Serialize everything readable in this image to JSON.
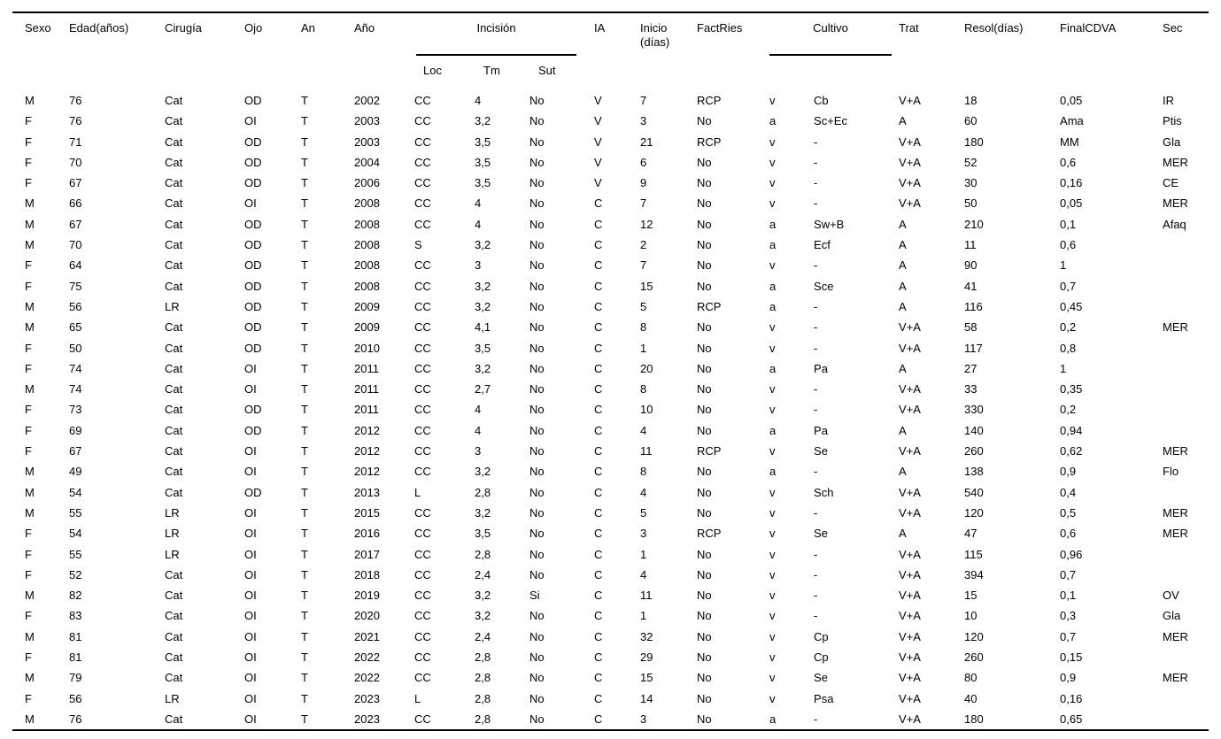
{
  "colors": {
    "background": "#ffffff",
    "text": "#000000",
    "rule": "#000000"
  },
  "table": {
    "header": {
      "sexo": "Sexo",
      "edad": "Edad(años)",
      "cirugia": "Cirugía",
      "ojo": "Ojo",
      "an": "An",
      "ano": "Año",
      "incision": "Incisión",
      "loc": "Loc",
      "tm": "Tm",
      "sut": "Sut",
      "ia": "IA",
      "inicio_line1": "Inicio",
      "inicio_line2": "(días)",
      "factries": "FactRies",
      "cultivo": "Cultivo",
      "trat": "Trat",
      "resol": "Resol(días)",
      "finalcdva": "FinalCDVA",
      "sec": "Sec"
    },
    "rows": [
      [
        "M",
        "76",
        "Cat",
        "OD",
        "T",
        "2002",
        "CC",
        "4",
        "No",
        "V",
        "7",
        "RCP",
        "v",
        "Cb",
        "V+A",
        "18",
        "0,05",
        "IR"
      ],
      [
        "F",
        "76",
        "Cat",
        "OI",
        "T",
        "2003",
        "CC",
        "3,2",
        "No",
        "V",
        "3",
        "No",
        "a",
        "Sc+Ec",
        "A",
        "60",
        "Ama",
        "Ptis"
      ],
      [
        "F",
        "71",
        "Cat",
        "OD",
        "T",
        "2003",
        "CC",
        "3,5",
        "No",
        "V",
        "21",
        "RCP",
        "v",
        "-",
        "V+A",
        "180",
        "MM",
        "Gla"
      ],
      [
        "F",
        "70",
        "Cat",
        "OD",
        "T",
        "2004",
        "CC",
        "3,5",
        "No",
        "V",
        "6",
        "No",
        "v",
        "-",
        "V+A",
        "52",
        "0,6",
        "MER"
      ],
      [
        "F",
        "67",
        "Cat",
        "OD",
        "T",
        "2006",
        "CC",
        "3,5",
        "No",
        "V",
        "9",
        "No",
        "v",
        "-",
        "V+A",
        "30",
        "0,16",
        "CE"
      ],
      [
        "M",
        "66",
        "Cat",
        "OI",
        "T",
        "2008",
        "CC",
        "4",
        "No",
        "C",
        "7",
        "No",
        "v",
        "-",
        "V+A",
        "50",
        "0,05",
        "MER"
      ],
      [
        "M",
        "67",
        "Cat",
        "OD",
        "T",
        "2008",
        "CC",
        "4",
        "No",
        "C",
        "12",
        "No",
        "a",
        "Sw+B",
        "A",
        "210",
        "0,1",
        "Afaq"
      ],
      [
        "M",
        "70",
        "Cat",
        "OD",
        "T",
        "2008",
        "S",
        "3,2",
        "No",
        "C",
        "2",
        "No",
        "a",
        "Ecf",
        "A",
        "11",
        "0,6",
        ""
      ],
      [
        "F",
        "64",
        "Cat",
        "OD",
        "T",
        "2008",
        "CC",
        "3",
        "No",
        "C",
        "7",
        "No",
        "v",
        "-",
        "A",
        "90",
        "1",
        ""
      ],
      [
        "F",
        "75",
        "Cat",
        "OD",
        "T",
        "2008",
        "CC",
        "3,2",
        "No",
        "C",
        "15",
        "No",
        "a",
        "Sce",
        "A",
        "41",
        "0,7",
        ""
      ],
      [
        "M",
        "56",
        "LR",
        "OD",
        "T",
        "2009",
        "CC",
        "3,2",
        "No",
        "C",
        "5",
        "RCP",
        "a",
        "-",
        "A",
        "116",
        "0,45",
        ""
      ],
      [
        "M",
        "65",
        "Cat",
        "OD",
        "T",
        "2009",
        "CC",
        "4,1",
        "No",
        "C",
        "8",
        "No",
        "v",
        "-",
        "V+A",
        "58",
        "0,2",
        "MER"
      ],
      [
        "F",
        "50",
        "Cat",
        "OD",
        "T",
        "2010",
        "CC",
        "3,5",
        "No",
        "C",
        "1",
        "No",
        "v",
        "-",
        "V+A",
        "117",
        "0,8",
        ""
      ],
      [
        "F",
        "74",
        "Cat",
        "OI",
        "T",
        "2011",
        "CC",
        "3,2",
        "No",
        "C",
        "20",
        "No",
        "a",
        "Pa",
        "A",
        "27",
        "1",
        ""
      ],
      [
        "M",
        "74",
        "Cat",
        "OI",
        "T",
        "2011",
        "CC",
        "2,7",
        "No",
        "C",
        "8",
        "No",
        "v",
        "-",
        "V+A",
        "33",
        "0,35",
        ""
      ],
      [
        "F",
        "73",
        "Cat",
        "OD",
        "T",
        "2011",
        "CC",
        "4",
        "No",
        "C",
        "10",
        "No",
        "v",
        "-",
        "V+A",
        "330",
        "0,2",
        ""
      ],
      [
        "F",
        "69",
        "Cat",
        "OD",
        "T",
        "2012",
        "CC",
        "4",
        "No",
        "C",
        "4",
        "No",
        "a",
        "Pa",
        "A",
        "140",
        "0,94",
        ""
      ],
      [
        "F",
        "67",
        "Cat",
        "OI",
        "T",
        "2012",
        "CC",
        "3",
        "No",
        "C",
        "11",
        "RCP",
        "v",
        "Se",
        "V+A",
        "260",
        "0,62",
        "MER"
      ],
      [
        "M",
        "49",
        "Cat",
        "OI",
        "T",
        "2012",
        "CC",
        "3,2",
        "No",
        "C",
        "8",
        "No",
        "a",
        "-",
        "A",
        "138",
        "0,9",
        "Flo"
      ],
      [
        "M",
        "54",
        "Cat",
        "OD",
        "T",
        "2013",
        "L",
        "2,8",
        "No",
        "C",
        "4",
        "No",
        "v",
        "Sch",
        "V+A",
        "540",
        "0,4",
        ""
      ],
      [
        "M",
        "55",
        "LR",
        "OI",
        "T",
        "2015",
        "CC",
        "3,2",
        "No",
        "C",
        "5",
        "No",
        "v",
        "-",
        "V+A",
        "120",
        "0,5",
        "MER"
      ],
      [
        "F",
        "54",
        "LR",
        "OI",
        "T",
        "2016",
        "CC",
        "3,5",
        "No",
        "C",
        "3",
        "RCP",
        "v",
        "Se",
        "A",
        "47",
        "0,6",
        "MER"
      ],
      [
        "F",
        "55",
        "LR",
        "OI",
        "T",
        "2017",
        "CC",
        "2,8",
        "No",
        "C",
        "1",
        "No",
        "v",
        "-",
        "V+A",
        "115",
        "0,96",
        ""
      ],
      [
        "F",
        "52",
        "Cat",
        "OI",
        "T",
        "2018",
        "CC",
        "2,4",
        "No",
        "C",
        "4",
        "No",
        "v",
        "-",
        "V+A",
        "394",
        "0,7",
        ""
      ],
      [
        "M",
        "82",
        "Cat",
        "OI",
        "T",
        "2019",
        "CC",
        "3,2",
        "Si",
        "C",
        "11",
        "No",
        "v",
        "-",
        "V+A",
        "15",
        "0,1",
        "OV"
      ],
      [
        "F",
        "83",
        "Cat",
        "OI",
        "T",
        "2020",
        "CC",
        "3,2",
        "No",
        "C",
        "1",
        "No",
        "v",
        "-",
        "V+A",
        "10",
        "0,3",
        "Gla"
      ],
      [
        "M",
        "81",
        "Cat",
        "OI",
        "T",
        "2021",
        "CC",
        "2,4",
        "No",
        "C",
        "32",
        "No",
        "v",
        "Cp",
        "V+A",
        "120",
        "0,7",
        "MER"
      ],
      [
        "F",
        "81",
        "Cat",
        "OI",
        "T",
        "2022",
        "CC",
        "2,8",
        "No",
        "C",
        "29",
        "No",
        "v",
        "Cp",
        "V+A",
        "260",
        "0,15",
        ""
      ],
      [
        "M",
        "79",
        "Cat",
        "OI",
        "T",
        "2022",
        "CC",
        "2,8",
        "No",
        "C",
        "15",
        "No",
        "v",
        "Se",
        "V+A",
        "80",
        "0,9",
        "MER"
      ],
      [
        "F",
        "56",
        "LR",
        "OI",
        "T",
        "2023",
        "L",
        "2,8",
        "No",
        "C",
        "14",
        "No",
        "v",
        "Psa",
        "V+A",
        "40",
        "0,16",
        ""
      ],
      [
        "M",
        "76",
        "Cat",
        "OI",
        "T",
        "2023",
        "CC",
        "2,8",
        "No",
        "C",
        "3",
        "No",
        "a",
        "-",
        "V+A",
        "180",
        "0,65",
        ""
      ]
    ]
  }
}
